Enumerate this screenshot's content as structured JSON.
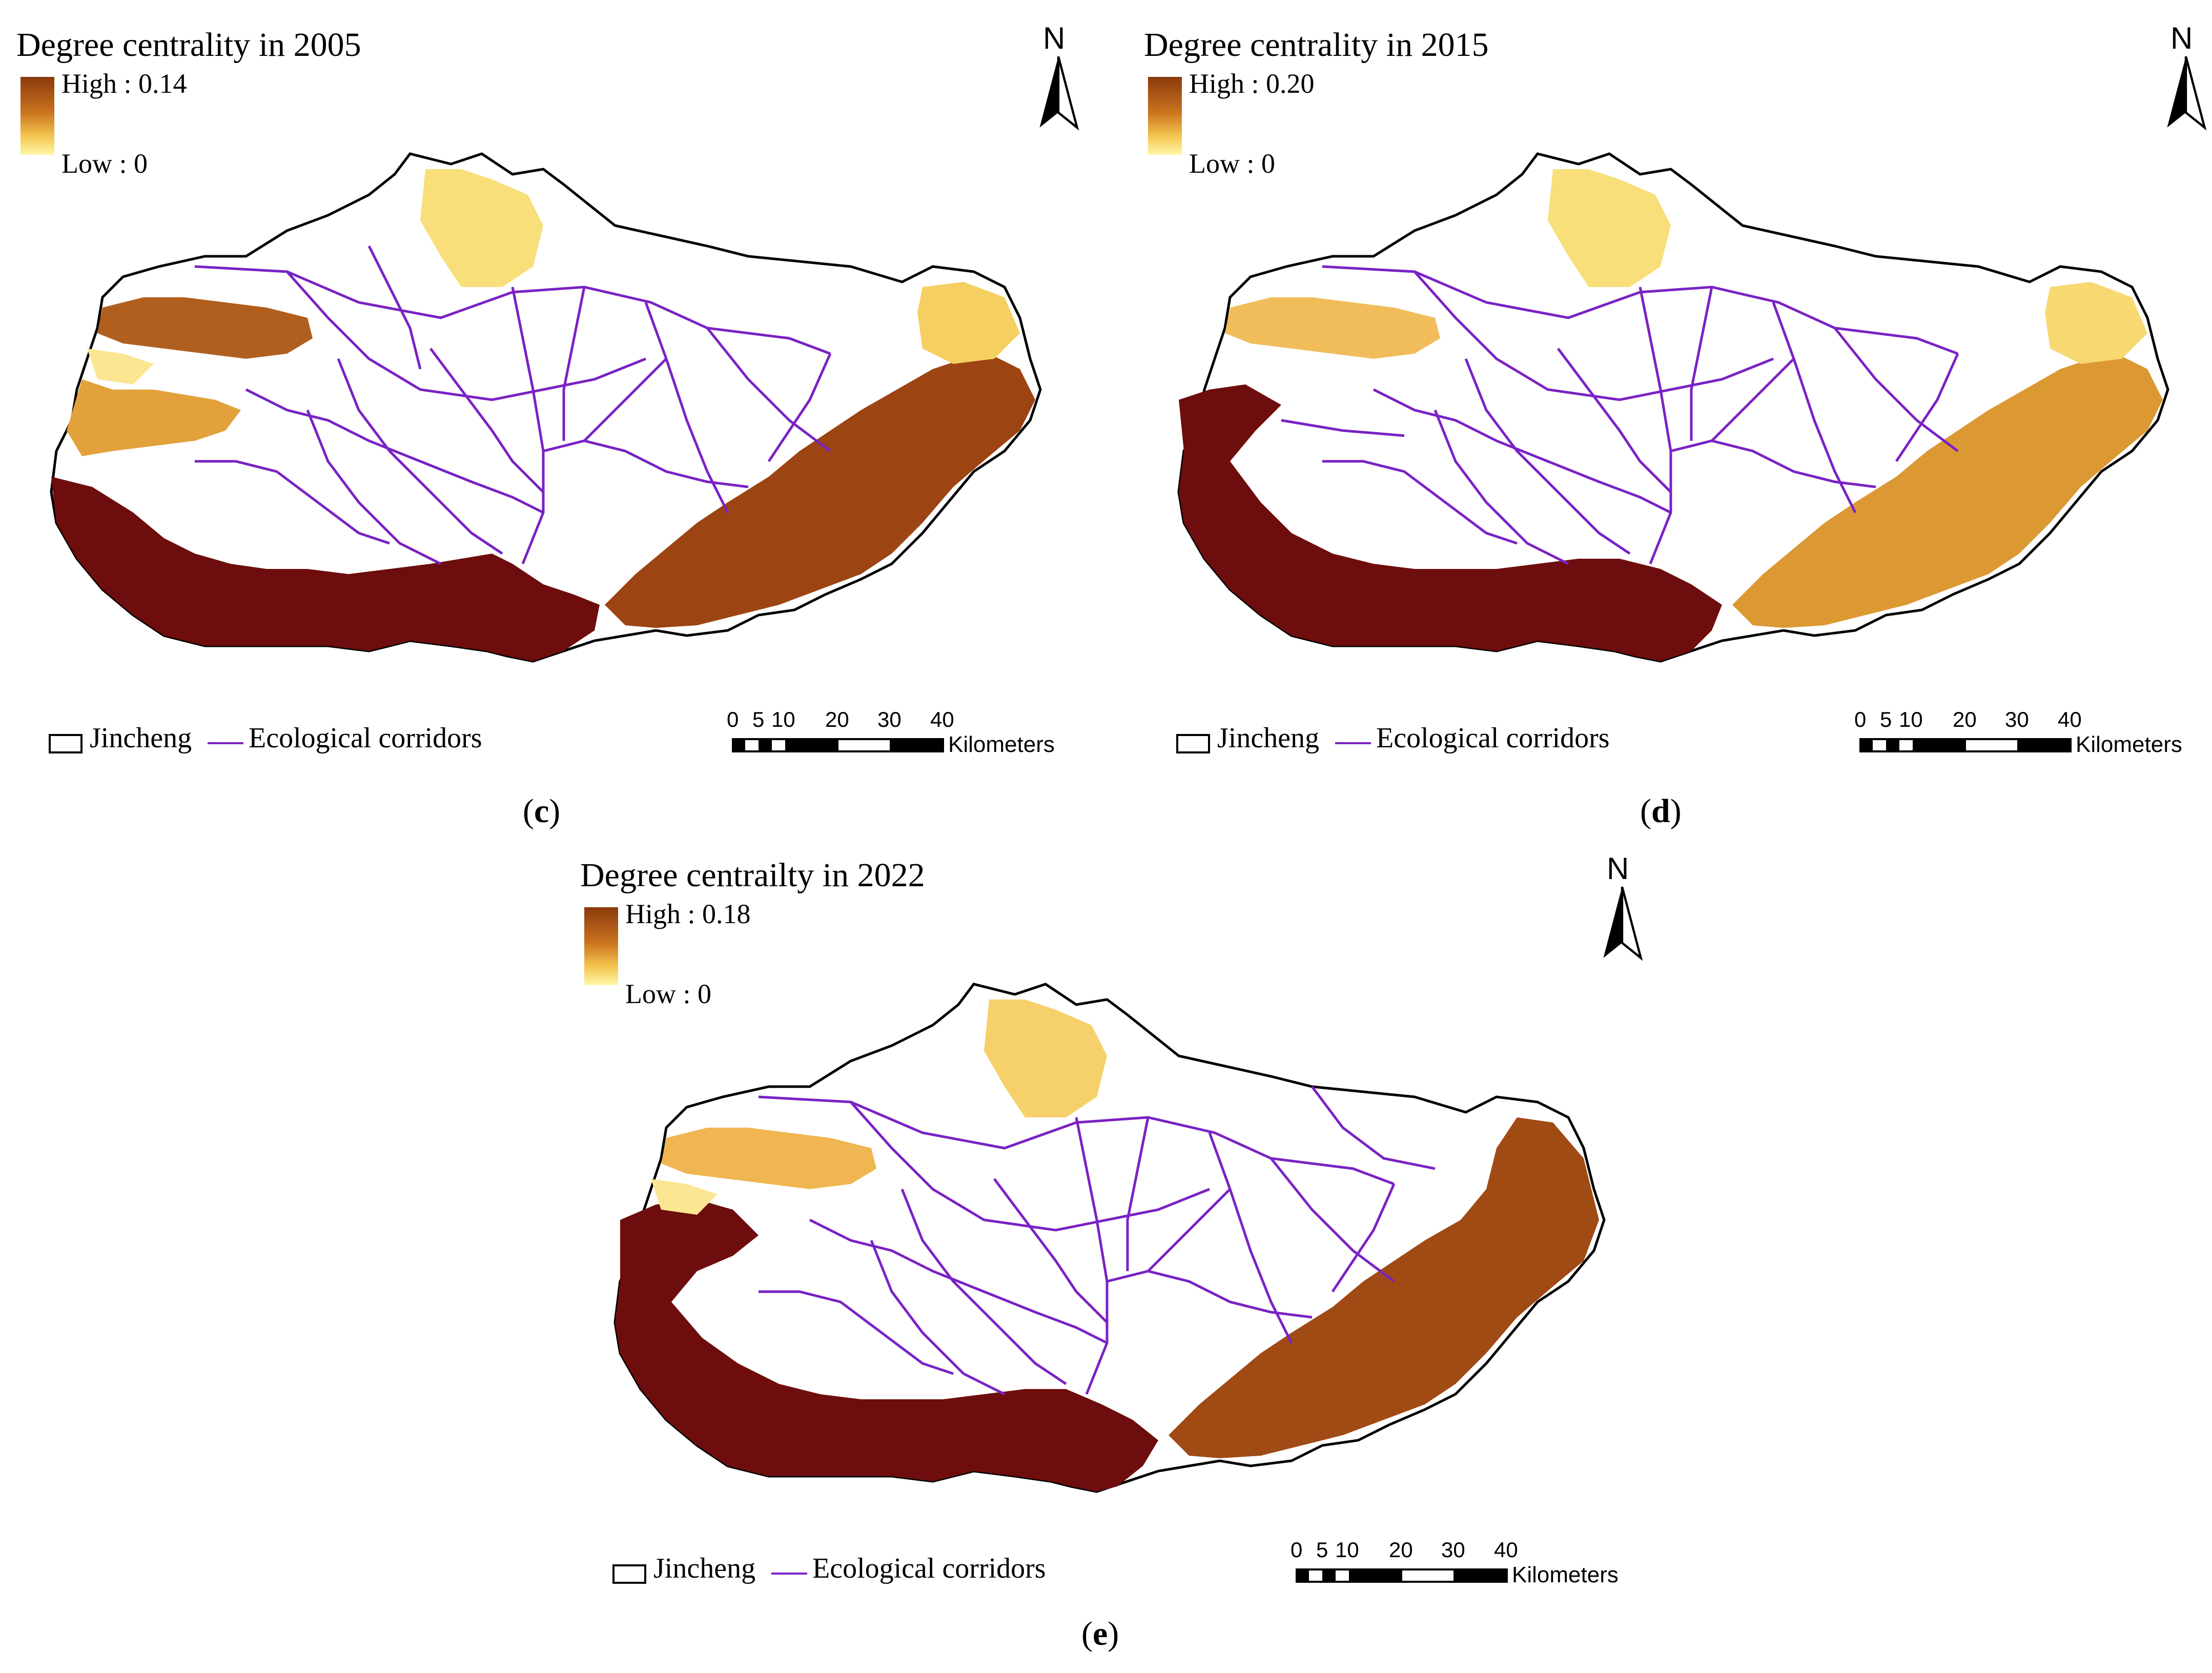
{
  "panels": [
    {
      "id": "c",
      "title": "Degree centrality in 2005",
      "high": "High : 0.14",
      "low": "Low : 0",
      "label": "c"
    },
    {
      "id": "d",
      "title": "Degree centrality in 2015",
      "high": "High : 0.20",
      "low": "Low : 0",
      "label": "d"
    },
    {
      "id": "e",
      "title": "Degree centrailty in 2022",
      "high": "High : 0.18",
      "low": "Low : 0",
      "label": "e"
    }
  ],
  "legend": {
    "boundary": "Jincheng",
    "corridor": "Ecological corridors"
  },
  "north": "N",
  "scale": {
    "ticks": [
      "0",
      "5",
      "10",
      "20",
      "30",
      "40"
    ],
    "unit": "Kilometers"
  },
  "colors": {
    "high": "#7a0f0f",
    "mid_high": "#a84e16",
    "mid": "#e1a43f",
    "low": "#fde88a",
    "corridor": "#7a22c4",
    "boundary": "#000000"
  }
}
